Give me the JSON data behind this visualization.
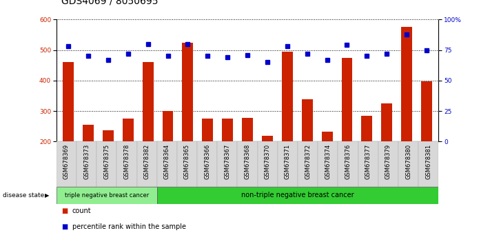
{
  "title": "GDS4069 / 8050695",
  "samples": [
    "GSM678369",
    "GSM678373",
    "GSM678375",
    "GSM678378",
    "GSM678382",
    "GSM678364",
    "GSM678365",
    "GSM678366",
    "GSM678367",
    "GSM678368",
    "GSM678370",
    "GSM678371",
    "GSM678372",
    "GSM678374",
    "GSM678376",
    "GSM678377",
    "GSM678379",
    "GSM678380",
    "GSM678381"
  ],
  "counts": [
    460,
    255,
    237,
    275,
    460,
    300,
    525,
    275,
    275,
    278,
    218,
    495,
    338,
    232,
    475,
    285,
    325,
    575,
    398
  ],
  "percentiles": [
    78,
    70,
    67,
    72,
    80,
    70,
    80,
    70,
    69,
    71,
    65,
    78,
    72,
    67,
    79,
    70,
    72,
    88,
    75
  ],
  "ymin": 200,
  "ymax": 600,
  "yticks_left": [
    200,
    300,
    400,
    500,
    600
  ],
  "yticks_right": [
    0,
    25,
    50,
    75,
    100
  ],
  "group1_count": 5,
  "group2_count": 14,
  "group1_label": "triple negative breast cancer",
  "group2_label": "non-triple negative breast cancer",
  "group1_color": "#90EE90",
  "group2_color": "#33CC33",
  "bar_color": "#CC2200",
  "dot_color": "#0000CC",
  "xlabel_color": "#CC2200",
  "ylabel_right_color": "#0000CC",
  "disease_state_label": "disease state",
  "legend_count": "count",
  "legend_pct": "percentile rank within the sample",
  "title_fontsize": 10,
  "tick_fontsize": 6.5,
  "xtick_fontsize": 6,
  "label_fontsize": 7,
  "bar_width": 0.55
}
